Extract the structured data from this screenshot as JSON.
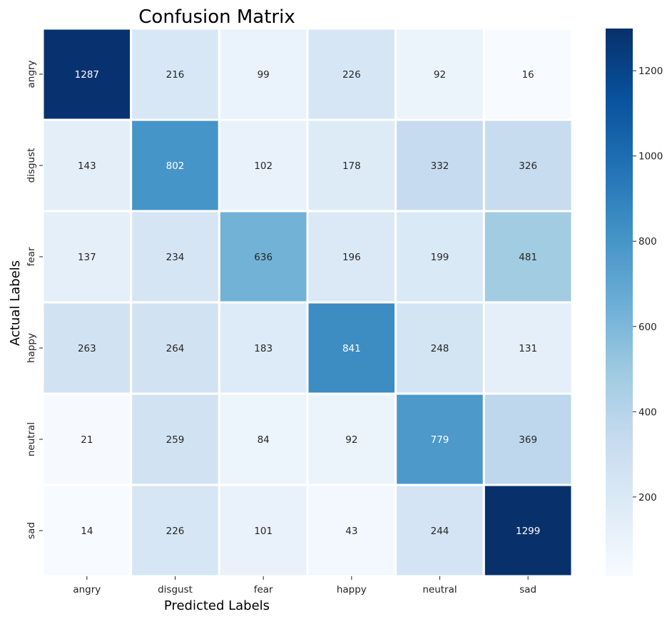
{
  "chart_data": {
    "type": "heatmap",
    "title": "Confusion Matrix",
    "xlabel": "Predicted Labels",
    "ylabel": "Actual Labels",
    "x_categories": [
      "angry",
      "disgust",
      "fear",
      "happy",
      "neutral",
      "sad"
    ],
    "y_categories": [
      "angry",
      "disgust",
      "fear",
      "happy",
      "neutral",
      "sad"
    ],
    "values": [
      [
        1287,
        216,
        99,
        226,
        92,
        16
      ],
      [
        143,
        802,
        102,
        178,
        332,
        326
      ],
      [
        137,
        234,
        636,
        196,
        199,
        481
      ],
      [
        263,
        264,
        183,
        841,
        248,
        131
      ],
      [
        21,
        259,
        84,
        92,
        779,
        369
      ],
      [
        14,
        226,
        101,
        43,
        244,
        1299
      ]
    ],
    "colormap": "Blues",
    "color_range": [
      14,
      1299
    ],
    "colorbar_ticks": [
      200,
      400,
      600,
      800,
      1000,
      1200
    ],
    "colors": {
      "low": "#f7fbff",
      "high": "#08306b",
      "cell_border": "#ffffff"
    }
  }
}
